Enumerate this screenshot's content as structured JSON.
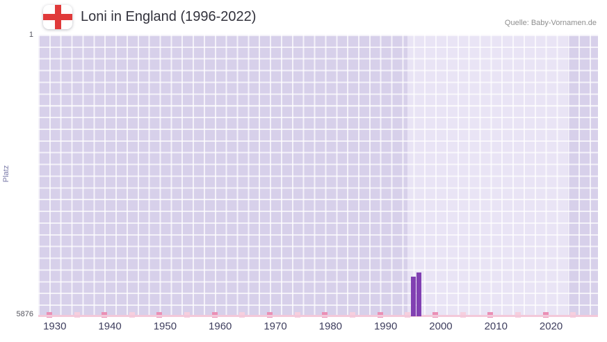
{
  "header": {
    "title": "Loni in England (1996-2022)",
    "source": "Quelle: Baby-Vornamen.de"
  },
  "chart_data": {
    "type": "bar",
    "title": "Loni in England (1996-2022)",
    "subtitle": "",
    "ylabel": "Platz",
    "xlabel": "",
    "source": "Quelle: Baby-Vornamen.de",
    "grid": true,
    "y_axis": {
      "min": 1,
      "max": 5876,
      "inverted": true,
      "tick_labels": [
        "1",
        "5876"
      ]
    },
    "x_axis": {
      "range": [
        1927,
        2028.5
      ],
      "tick_years": [
        1930,
        1940,
        1950,
        1960,
        1970,
        1980,
        1990,
        2000,
        2010,
        2020
      ]
    },
    "series": [
      {
        "name": "Platz",
        "points": [
          {
            "year": 1995,
            "rank": 5050
          },
          {
            "year": 1996,
            "rank": 4960
          }
        ]
      }
    ],
    "highlight_band": {
      "from_year": 1994,
      "to_year": 2023
    },
    "baseline_marks": {
      "dark_years": [
        1929,
        1939,
        1949,
        1959,
        1969,
        1979,
        1989,
        1999,
        2009,
        2019
      ],
      "light_years": [
        1934,
        1944,
        1954,
        1964,
        1974,
        1984,
        1994,
        2004,
        2014,
        2024
      ]
    },
    "colors": {
      "bar": "#8140b2",
      "plot_background": "#d7d0ea",
      "highlight_band": "#e9e4f5",
      "grid_line": "#ffffff",
      "axis_line": "#f3c9da",
      "mark_dark": "#ea8fb5",
      "mark_light": "#f6cfde",
      "flag_cross": "#e03a3a",
      "title_text": "#32323c",
      "tick_text": "#3e3e5e"
    }
  }
}
